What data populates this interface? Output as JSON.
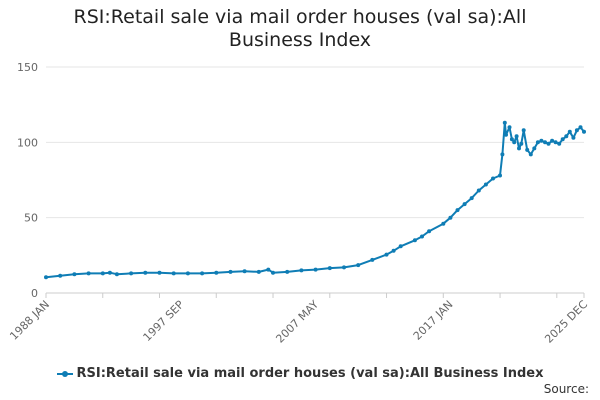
{
  "title": "RSI:Retail sale via mail order houses (val sa):All Business Index",
  "source_label": "Source:",
  "colors": {
    "series": "#0f7db5",
    "grid": "#e6e6e6",
    "axis": "#cccccc",
    "text": "#666666"
  },
  "chart_data": {
    "type": "line",
    "title": "RSI:Retail sale via mail order houses (val sa):All Business Index",
    "xlabel": "",
    "ylabel": "",
    "ylim": [
      0,
      150
    ],
    "yticks": [
      0,
      50,
      100,
      150
    ],
    "xlim": [
      "1988-01",
      "2025-12"
    ],
    "xtick_labels": [
      "1988 JAN",
      "1997 SEP",
      "2007 MAY",
      "2017 JAN",
      "2025 DEC"
    ],
    "grid": true,
    "legend_position": "bottom",
    "series": [
      {
        "name": "RSI:Retail sale via mail order houses (val sa):All Business Index",
        "x": [
          "1988-01",
          "1989-01",
          "1990-01",
          "1991-01",
          "1992-01",
          "1992-07",
          "1993-01",
          "1994-01",
          "1995-01",
          "1996-01",
          "1997-01",
          "1998-01",
          "1999-01",
          "2000-01",
          "2001-01",
          "2002-01",
          "2003-01",
          "2003-09",
          "2004-01",
          "2005-01",
          "2006-01",
          "2007-01",
          "2008-01",
          "2009-01",
          "2010-01",
          "2011-01",
          "2012-01",
          "2012-07",
          "2013-01",
          "2014-01",
          "2014-07",
          "2015-01",
          "2016-01",
          "2016-07",
          "2017-01",
          "2017-07",
          "2018-01",
          "2018-07",
          "2019-01",
          "2019-07",
          "2020-01",
          "2020-03",
          "2020-05",
          "2020-06",
          "2020-09",
          "2020-11",
          "2021-01",
          "2021-03",
          "2021-05",
          "2021-07",
          "2021-09",
          "2021-12",
          "2022-03",
          "2022-06",
          "2022-09",
          "2022-12",
          "2023-03",
          "2023-06",
          "2023-09",
          "2023-12",
          "2024-03",
          "2024-06",
          "2024-09",
          "2024-12",
          "2025-03",
          "2025-06",
          "2025-09",
          "2025-12"
        ],
        "y": [
          10.5,
          11.5,
          12.5,
          13,
          13,
          13.5,
          12.5,
          13,
          13.5,
          13.5,
          13,
          13,
          13,
          13.5,
          14,
          14.5,
          14,
          15.5,
          13.5,
          14,
          15,
          15.5,
          16.5,
          17,
          18.5,
          22,
          25.5,
          28,
          31,
          35,
          37.5,
          41,
          46,
          50,
          55,
          59,
          63,
          68,
          72,
          76,
          78,
          92,
          113,
          105,
          110,
          102,
          100,
          104,
          96,
          99,
          108,
          95,
          92,
          96,
          100,
          101,
          100,
          99,
          101,
          100,
          99,
          102,
          104,
          107,
          103,
          108,
          110,
          107
        ]
      }
    ]
  }
}
